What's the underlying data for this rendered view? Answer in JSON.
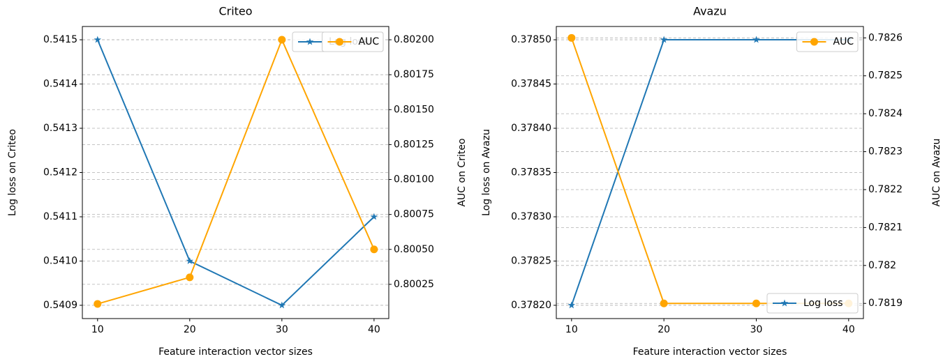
{
  "chart_data": [
    {
      "type": "line",
      "title": "Criteo",
      "xlabel": "Feature interaction vector sizes",
      "ylabel": "Log loss on Criteo",
      "y2label": "AUC on Criteo",
      "x": [
        10,
        20,
        30,
        40
      ],
      "series": [
        {
          "name": "Log loss",
          "color": "#1f77b4",
          "marker": "star",
          "legend_loc": "upper right",
          "values": [
            0.5415,
            0.541,
            0.5409,
            0.5411
          ]
        },
        {
          "name": "AUC",
          "color": "#ffa500",
          "marker": "circle",
          "axis": "y2",
          "legend_loc": "upper right",
          "values": [
            0.80011,
            0.8003,
            0.802,
            0.8005
          ]
        }
      ],
      "xlim": [
        8.35,
        41.6
      ],
      "xticks": [
        10,
        20,
        30,
        40
      ],
      "ylim": [
        0.54087,
        0.54153
      ],
      "yticks": [
        0.5409,
        {
          "value": 0.541,
          "label": "0.5410"
        },
        0.5411,
        0.5412,
        0.5413,
        0.5414,
        0.5415
      ],
      "y2lim": [
        0.800005,
        0.802095
      ],
      "y2ticks": [
        0.80025,
        {
          "value": 0.8005,
          "label": "0.80050"
        },
        0.80075,
        {
          "value": 0.801,
          "label": "0.80100"
        },
        0.80125,
        {
          "value": 0.8015,
          "label": "0.80150"
        },
        0.80175,
        {
          "value": 0.802,
          "label": "0.80200"
        }
      ],
      "grid": true
    },
    {
      "type": "line",
      "title": "Avazu",
      "xlabel": "Feature interaction vector sizes",
      "ylabel": "Log loss on Avazu",
      "y2label": "AUC on Avazu",
      "x": [
        10,
        20,
        30,
        40
      ],
      "series": [
        {
          "name": "Log loss",
          "color": "#1f77b4",
          "marker": "star",
          "legend_loc": "lower right",
          "values": [
            0.3782,
            0.3785,
            0.3785,
            0.3785
          ]
        },
        {
          "name": "AUC",
          "color": "#ffa500",
          "marker": "circle",
          "axis": "y2",
          "legend_loc": "upper right",
          "values": [
            0.7826,
            0.7819,
            0.7819,
            0.7819
          ]
        }
      ],
      "xlim": [
        8.35,
        41.6
      ],
      "xticks": [
        10,
        20,
        30,
        40
      ],
      "ylim": [
        0.378185,
        0.378515
      ],
      "yticks": [
        {
          "value": 0.3782,
          "label": "0.37820"
        },
        0.37825,
        {
          "value": 0.3783,
          "label": "0.37830"
        },
        0.37835,
        {
          "value": 0.3784,
          "label": "0.37840"
        },
        0.37845,
        {
          "value": 0.3785,
          "label": "0.37850"
        }
      ],
      "y2lim": [
        0.78186,
        0.78263
      ],
      "y2ticks": [
        0.7819,
        0.782,
        0.7821,
        0.7822,
        0.7823,
        0.7824,
        0.7825,
        0.7826
      ],
      "grid": true
    }
  ]
}
